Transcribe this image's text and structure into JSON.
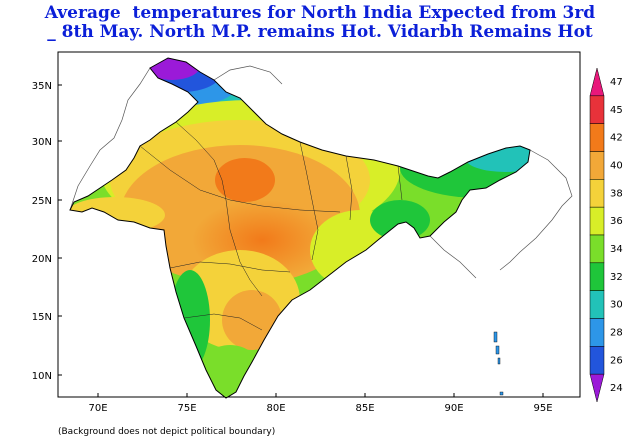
{
  "title": {
    "line1": "Average  temperatures for North India Expected from 3rd",
    "line2": "_ 8th May. North M.P. remains Hot. Vidarbh Remains Hot"
  },
  "axes": {
    "lat_ticks": [
      "35N",
      "30N",
      "25N",
      "20N",
      "15N",
      "10N"
    ],
    "lon_ticks": [
      "70E",
      "75E",
      "80E",
      "85E",
      "90E",
      "95E"
    ],
    "lat_range": [
      7,
      38
    ],
    "lon_range": [
      67,
      97.5
    ]
  },
  "legend": {
    "levels": [
      "47",
      "45",
      "42",
      "40",
      "38",
      "36",
      "34",
      "32",
      "30",
      "28",
      "26",
      "24"
    ],
    "colors": [
      "#e8187b",
      "#e8323a",
      "#f27a1a",
      "#f2a838",
      "#f4d23a",
      "#d8ee28",
      "#7ade2a",
      "#1fc63a",
      "#22c2b8",
      "#2d96e8",
      "#2255dc",
      "#9b1ad8"
    ]
  },
  "footnote": "(Background does not depict political boundary)"
}
